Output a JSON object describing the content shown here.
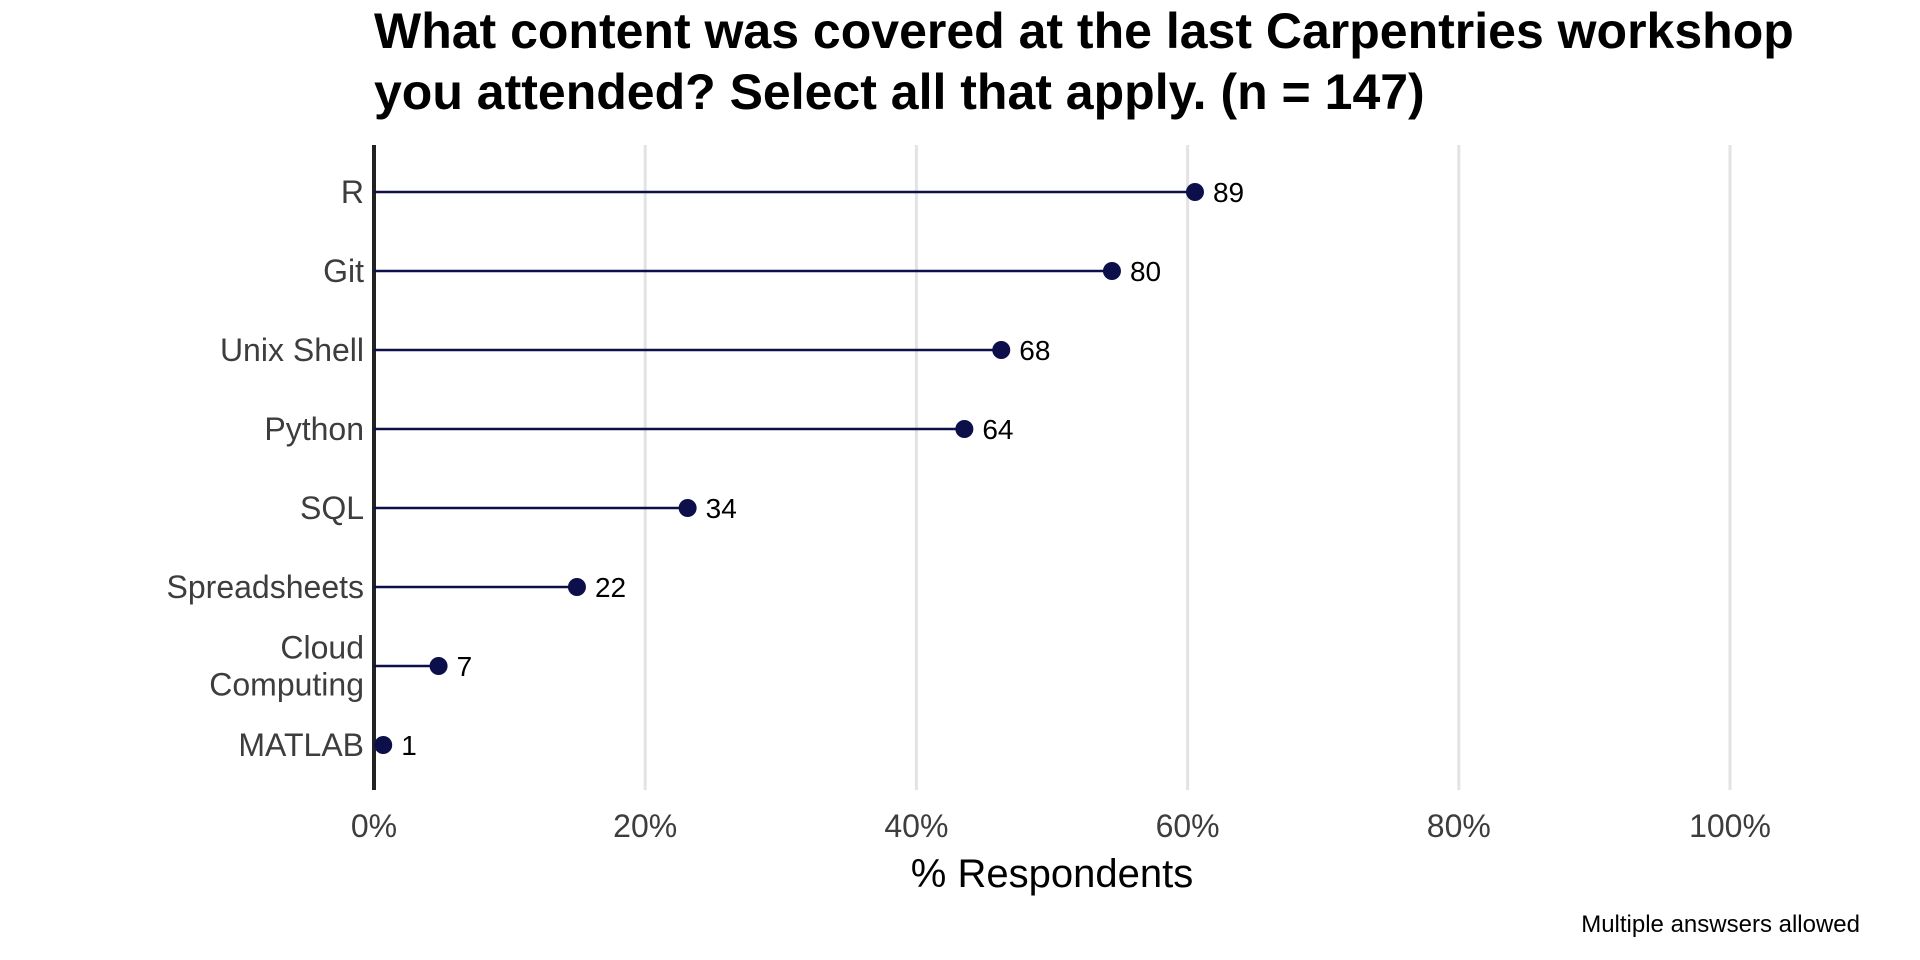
{
  "chart_data": {
    "type": "lollipop",
    "title_lines": [
      "What content was covered at the last Carpentries workshop",
      "you attended? Select all that apply. (n = 147)"
    ],
    "n": 147,
    "xlabel": "% Respondents",
    "ylabel": "",
    "xlim": [
      0,
      100
    ],
    "x_ticks": [
      0,
      20,
      40,
      60,
      80,
      100
    ],
    "x_tick_labels": [
      "0%",
      "20%",
      "40%",
      "60%",
      "80%",
      "100%"
    ],
    "categories": [
      {
        "lines": [
          "R"
        ],
        "count": 89
      },
      {
        "lines": [
          "Git"
        ],
        "count": 80
      },
      {
        "lines": [
          "Unix Shell"
        ],
        "count": 68
      },
      {
        "lines": [
          "Python"
        ],
        "count": 64
      },
      {
        "lines": [
          "SQL"
        ],
        "count": 34
      },
      {
        "lines": [
          "Spreadsheets"
        ],
        "count": 22
      },
      {
        "lines": [
          "Cloud",
          "Computing"
        ],
        "count": 7
      },
      {
        "lines": [
          "MATLAB"
        ],
        "count": 1
      }
    ],
    "grid": "vertical major",
    "colors": {
      "point": "#0d0f4a",
      "stem": "#0d0f4a"
    },
    "caption": "Multiple answsers allowed"
  }
}
